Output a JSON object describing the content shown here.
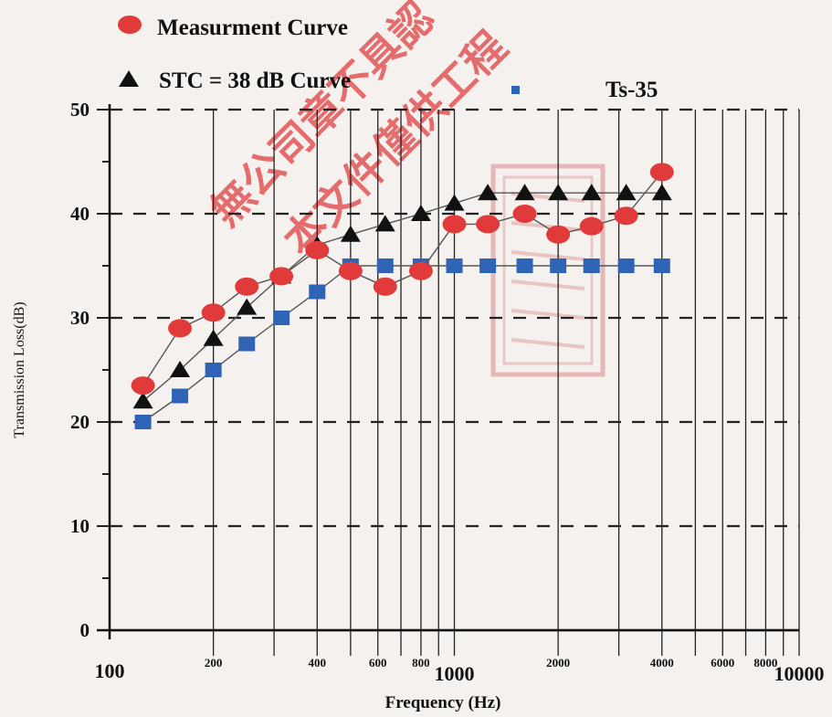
{
  "chart_data": {
    "type": "line",
    "xscale": "log",
    "xlabel": "Frequency (Hz)",
    "ylabel": "Transmission Loss(dB)",
    "xlim": [
      100,
      10000
    ],
    "ylim": [
      0,
      50
    ],
    "grid": true,
    "legend_position": "top-left",
    "x_tick_labels": [
      {
        "value": 100,
        "label": "100"
      },
      {
        "value": 200,
        "label": "200"
      },
      {
        "value": 400,
        "label": "400"
      },
      {
        "value": 600,
        "label": "600"
      },
      {
        "value": 800,
        "label": "800"
      },
      {
        "value": 1000,
        "label": "1000"
      },
      {
        "value": 2000,
        "label": "2000"
      },
      {
        "value": 4000,
        "label": "4000"
      },
      {
        "value": 6000,
        "label": "6000"
      },
      {
        "value": 8000,
        "label": "8000"
      },
      {
        "value": 10000,
        "label": "10000"
      }
    ],
    "y_tick_labels": [
      "0",
      "10",
      "20",
      "30",
      "40",
      "50"
    ],
    "series": [
      {
        "name": "Measurment Curve",
        "marker": "circle",
        "color": "#e13a3a",
        "x": [
          125,
          160,
          200,
          250,
          315,
          400,
          500,
          630,
          800,
          1000,
          1250,
          1600,
          2000,
          2500,
          3150,
          4000
        ],
        "y": [
          23.5,
          29,
          30.5,
          33,
          34,
          36.5,
          34.5,
          33,
          34.5,
          39,
          39,
          40,
          38,
          38.8,
          39.8,
          44
        ]
      },
      {
        "name": "STC = 38 dB Curve",
        "marker": "triangle",
        "color": "#111111",
        "x": [
          125,
          160,
          200,
          250,
          315,
          400,
          500,
          630,
          800,
          1000,
          1250,
          1600,
          2000,
          2500,
          3150,
          4000
        ],
        "y": [
          22,
          25,
          28,
          31,
          34,
          37,
          38,
          39,
          40,
          41,
          42,
          42,
          42,
          42,
          42,
          42
        ]
      },
      {
        "name": "Ts-35",
        "marker": "square",
        "color": "#2f63b5",
        "x": [
          125,
          160,
          200,
          250,
          315,
          400,
          500,
          630,
          800,
          1000,
          1250,
          1600,
          2000,
          2500,
          3150,
          4000
        ],
        "y": [
          20,
          22.5,
          25,
          27.5,
          30,
          32.5,
          35,
          35,
          35,
          35,
          35,
          35,
          35,
          35,
          35,
          35
        ]
      }
    ],
    "watermark_text": [
      "無公司章不具認",
      "本文件僅供工程"
    ]
  }
}
